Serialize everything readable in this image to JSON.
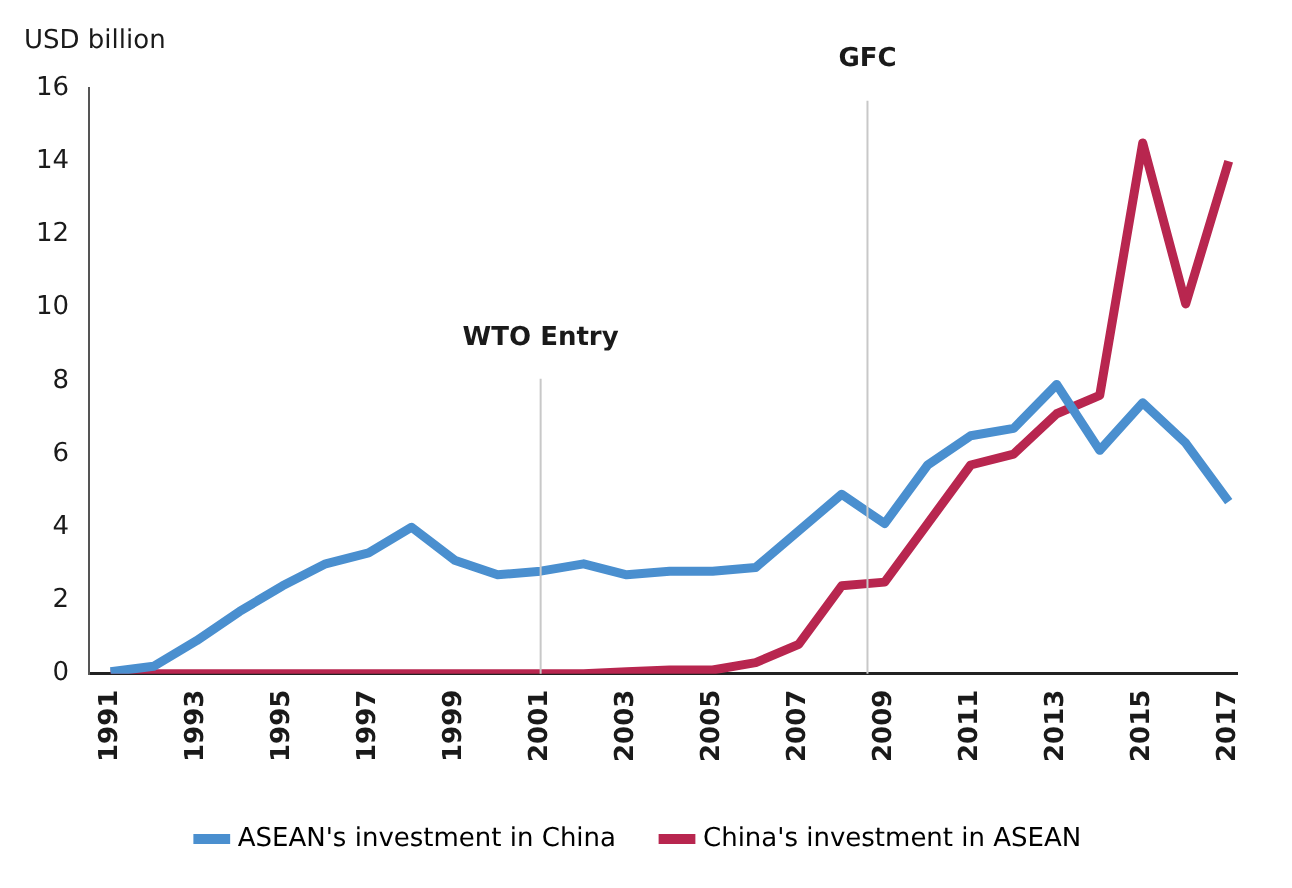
{
  "chart_data": {
    "type": "line",
    "ylabel": "USD billion",
    "x": [
      1991,
      1992,
      1993,
      1994,
      1995,
      1996,
      1997,
      1998,
      1999,
      2000,
      2001,
      2002,
      2003,
      2004,
      2005,
      2006,
      2007,
      2008,
      2009,
      2010,
      2011,
      2012,
      2013,
      2014,
      2015,
      2016,
      2017
    ],
    "series": [
      {
        "name": "ASEAN's investment in China",
        "color": "#4a8fcf",
        "values": [
          0.05,
          0.2,
          0.9,
          1.7,
          2.4,
          3.0,
          3.3,
          4.0,
          3.1,
          2.7,
          2.8,
          3.0,
          2.7,
          2.8,
          2.8,
          2.9,
          3.9,
          4.9,
          4.1,
          5.7,
          6.5,
          6.7,
          7.9,
          6.1,
          7.4,
          6.3,
          4.7
        ]
      },
      {
        "name": "China's investment in ASEAN",
        "color": "#b8264f",
        "values": [
          0,
          0,
          0,
          0,
          0,
          0,
          0,
          0,
          0,
          0,
          0,
          0,
          0.05,
          0.1,
          0.1,
          0.3,
          0.8,
          2.4,
          2.5,
          4.1,
          5.7,
          6.0,
          7.1,
          7.6,
          14.5,
          10.1,
          14.0
        ]
      }
    ],
    "xlim": [
      1990.5,
      2017.2
    ],
    "xticks": [
      1991,
      1993,
      1995,
      1997,
      1999,
      2001,
      2003,
      2005,
      2007,
      2009,
      2011,
      2013,
      2015,
      2017
    ],
    "ylim": [
      0,
      16
    ],
    "yticks": [
      0,
      2,
      4,
      6,
      8,
      10,
      12,
      14,
      16
    ],
    "ref_lines": [
      {
        "axis": "x",
        "value": 2001,
        "label": "WTO Entry",
        "color": "#c8c8c8"
      },
      {
        "axis": "x",
        "value": 2008.6,
        "label": "GFC",
        "color": "#c8c8c8"
      }
    ],
    "grid": false,
    "legend": "bottom",
    "marker": "none",
    "line_style": "solid"
  }
}
